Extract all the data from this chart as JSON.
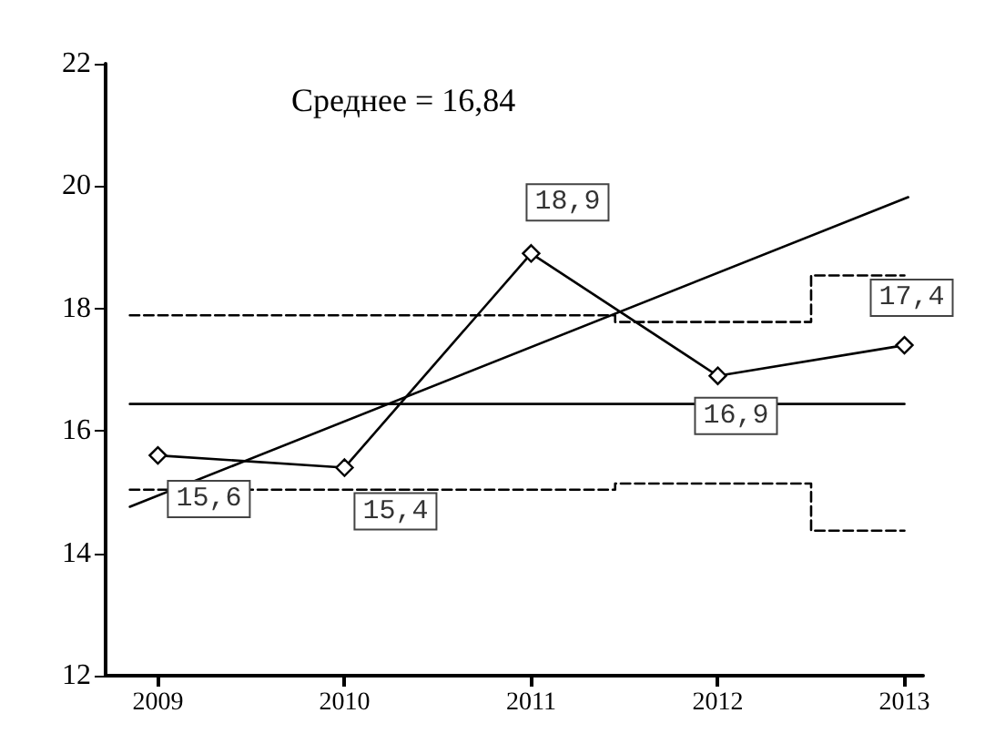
{
  "chart_data": {
    "type": "line",
    "x": [
      2009,
      2010,
      2011,
      2012,
      2013
    ],
    "xlim": [
      2008.72,
      2013.1
    ],
    "xticks": [
      2009,
      2010,
      2011,
      2012,
      2013
    ],
    "ylim": [
      12,
      22
    ],
    "yticks": [
      12,
      14,
      16,
      18,
      20,
      22
    ],
    "grid": false,
    "annotations": [
      "Среднее = 16,84"
    ],
    "series": [
      {
        "color": "#000000",
        "marker": "diamond",
        "line_style": "solid",
        "values": [
          15.6,
          15.4,
          18.9,
          16.9,
          17.4
        ],
        "value_labels": [
          "15,6",
          "15,4",
          "18,9",
          "16,9",
          "17,4"
        ]
      },
      {
        "color": "#000000",
        "marker": "none",
        "line_style": "solid",
        "x": [
          2008.85,
          2013
        ],
        "values": [
          16.44,
          16.44
        ]
      },
      {
        "color": "#000000",
        "marker": "none",
        "line_style": "dashed",
        "x": [
          2008.85,
          2011.45,
          2011.45,
          2012.5,
          2012.5,
          2013
        ],
        "values": [
          17.89,
          17.89,
          17.78,
          17.78,
          18.54,
          18.54
        ]
      },
      {
        "color": "#000000",
        "marker": "none",
        "line_style": "dashed",
        "x": [
          2008.85,
          2011.45,
          2011.45,
          2012.5,
          2012.5,
          2013
        ],
        "values": [
          15.04,
          15.04,
          15.14,
          15.14,
          14.37,
          14.37
        ]
      },
      {
        "color": "#000000",
        "marker": "none",
        "line_style": "solid",
        "x": [
          2008.85,
          2013.02
        ],
        "values": [
          14.76,
          19.82
        ]
      }
    ]
  }
}
